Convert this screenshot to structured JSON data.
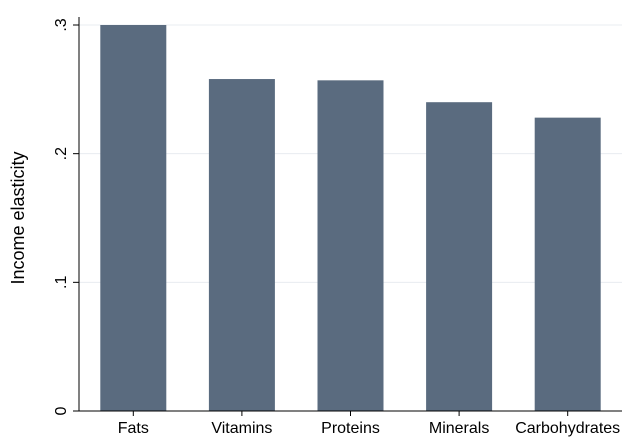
{
  "chart_data": {
    "type": "bar",
    "title": "",
    "xlabel": "",
    "ylabel": "Income elasticity",
    "categories": [
      "Fats",
      "Vitamins",
      "Proteins",
      "Minerals",
      "Carbohydrates"
    ],
    "values": [
      0.3,
      0.258,
      0.257,
      0.24,
      0.228
    ],
    "ylim": [
      0,
      0.3
    ],
    "yticks": [
      {
        "value": 0,
        "label": "0"
      },
      {
        "value": 0.1,
        "label": ".1"
      },
      {
        "value": 0.2,
        "label": ".2"
      },
      {
        "value": 0.3,
        "label": ".3"
      }
    ],
    "grid": true,
    "bar_color": "#5a6b7f",
    "grid_color": "#e8ecf0",
    "legend": "none"
  }
}
